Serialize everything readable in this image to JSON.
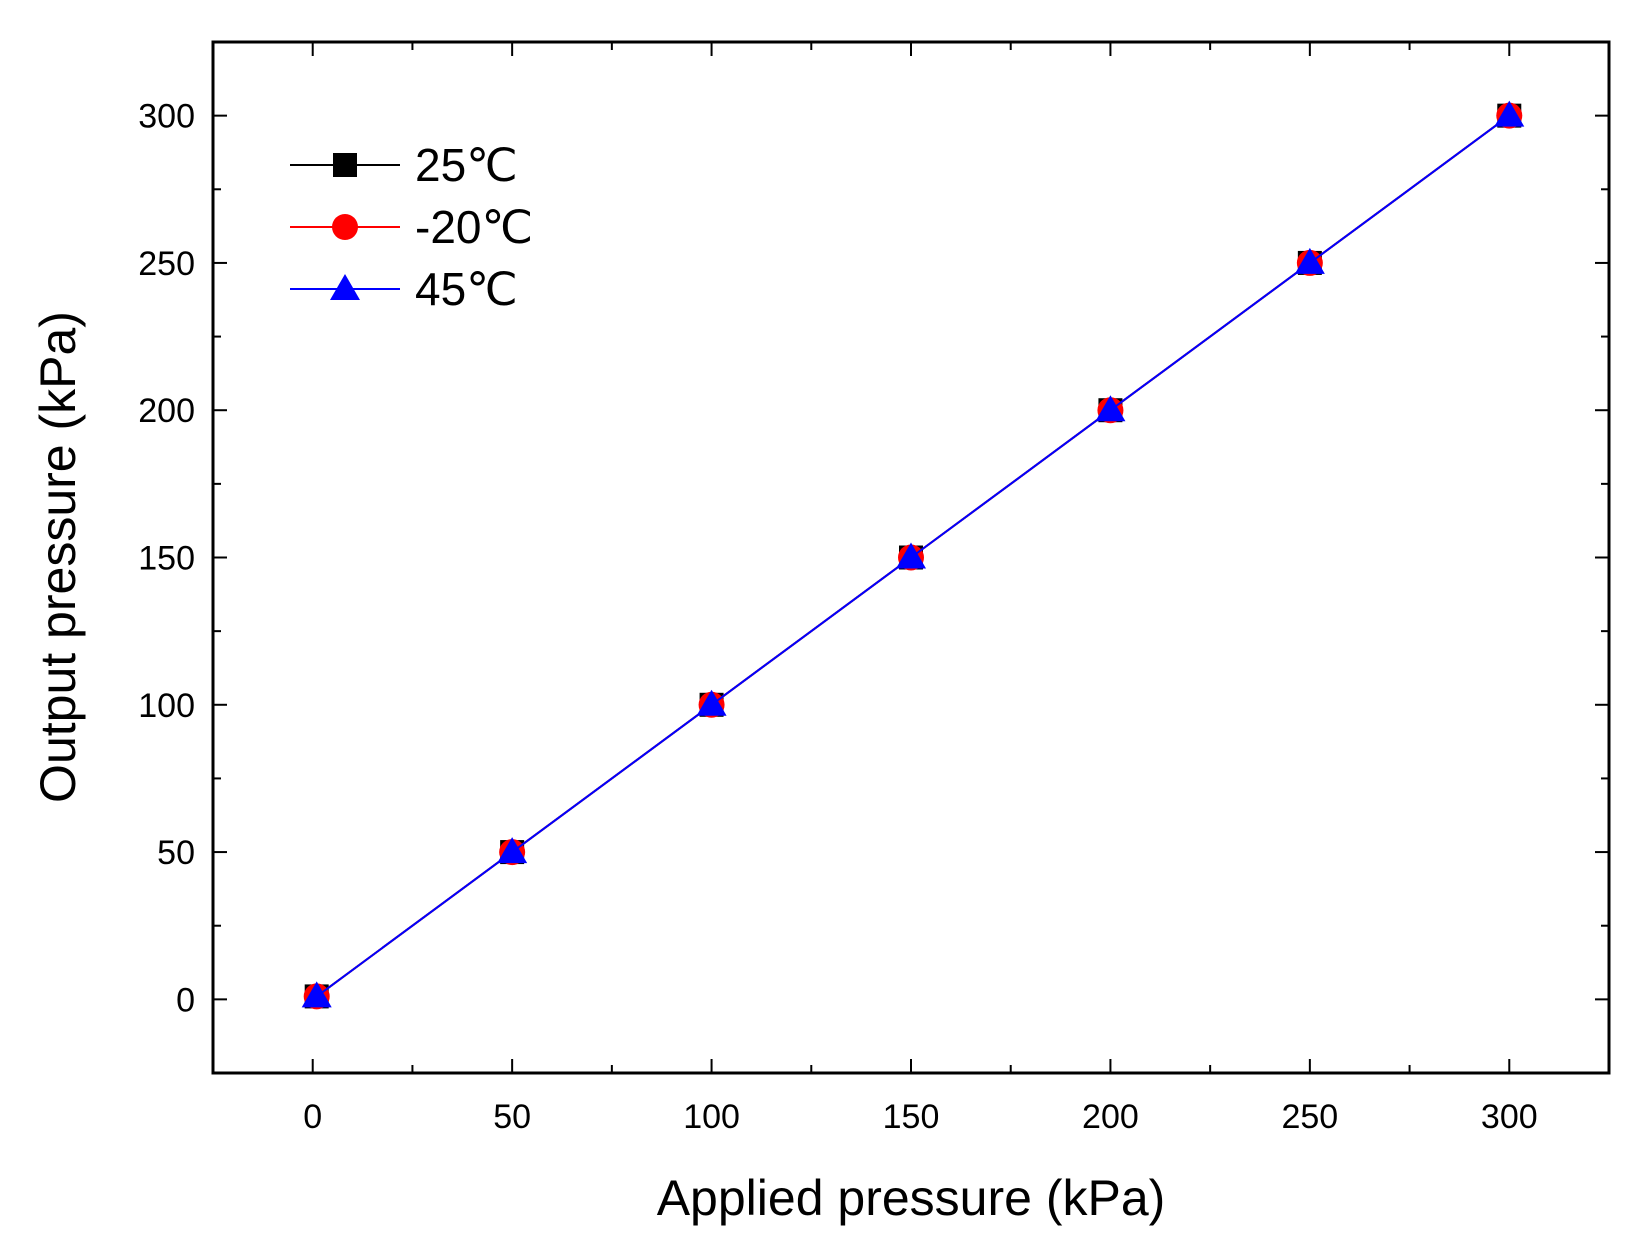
{
  "chart_data": {
    "type": "line",
    "title": "",
    "xlabel": "Applied pressure (kPa)",
    "ylabel": "Output pressure (kPa)",
    "xlim": [
      -25,
      325
    ],
    "ylim": [
      -25,
      325
    ],
    "xticks": [
      0,
      50,
      100,
      150,
      200,
      250,
      300
    ],
    "yticks": [
      0,
      50,
      100,
      150,
      200,
      250,
      300
    ],
    "xtick_labels": [
      "0",
      "50",
      "100",
      "150",
      "200",
      "250",
      "300"
    ],
    "ytick_labels": [
      "0",
      "50",
      "100",
      "150",
      "200",
      "250",
      "300"
    ],
    "grid": false,
    "legend_position": "top-left",
    "series": [
      {
        "name": "25℃",
        "marker": "square",
        "color": "#000000",
        "x": [
          1,
          50,
          100,
          150,
          200,
          250,
          300
        ],
        "y": [
          1,
          50,
          100,
          150,
          200,
          250,
          300
        ]
      },
      {
        "name": "-20℃",
        "marker": "circle",
        "color": "#ff0000",
        "x": [
          1,
          50,
          100,
          150,
          200,
          250,
          300
        ],
        "y": [
          1,
          50,
          100,
          150,
          200,
          250,
          300
        ]
      },
      {
        "name": "45℃",
        "marker": "triangle",
        "color": "#0000ff",
        "x": [
          1,
          50,
          100,
          150,
          200,
          250,
          300
        ],
        "y": [
          1,
          50,
          100,
          150,
          200,
          250,
          300
        ]
      }
    ]
  }
}
